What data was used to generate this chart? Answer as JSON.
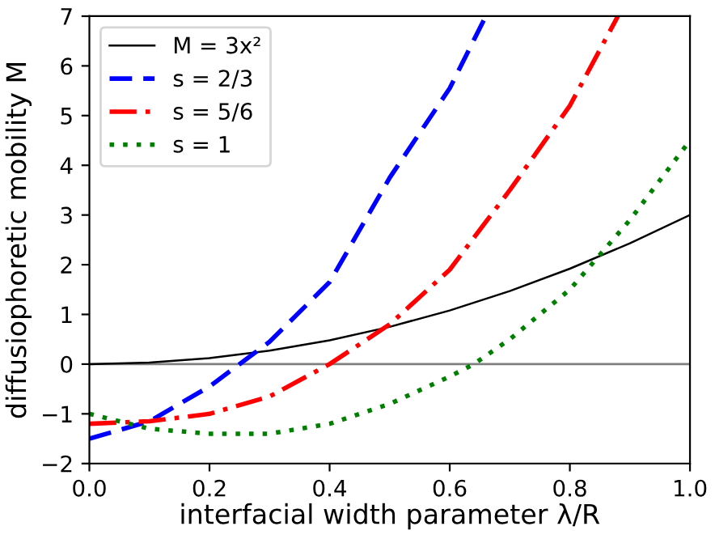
{
  "chart_data": {
    "type": "line",
    "xlabel": "interfacial width parameter λ/R",
    "ylabel": "diffusiophoretic mobility M",
    "xlim": [
      0,
      1
    ],
    "ylim": [
      -2,
      7
    ],
    "xticks": [
      {
        "value": 0,
        "label": "0.0"
      },
      0.2,
      0.4,
      0.6,
      0.8,
      {
        "value": 1,
        "label": "1.0"
      }
    ],
    "yticks": [
      -2,
      -1,
      0,
      1,
      2,
      3,
      4,
      5,
      6,
      7
    ],
    "grid": false,
    "legend": "top left",
    "marker": "none",
    "ref_lines": [
      {
        "axis": "y",
        "value": 0,
        "color": "#808080"
      }
    ],
    "series": [
      {
        "name": "M = 3x²",
        "color": "#000000",
        "line_style": "solid",
        "x": [
          0,
          0.1,
          0.2,
          0.3,
          0.4,
          0.5,
          0.6,
          0.7,
          0.8,
          0.9,
          1.0
        ],
        "values": [
          0,
          0.03,
          0.12,
          0.27,
          0.48,
          0.75,
          1.08,
          1.47,
          1.92,
          2.43,
          3.0
        ]
      },
      {
        "name": "s = 2/3",
        "color": "#0000ff",
        "line_style": "dashed",
        "x": [
          0,
          0.1,
          0.2,
          0.25,
          0.3,
          0.4,
          0.5,
          0.6,
          0.66
        ],
        "values": [
          -1.5,
          -1.15,
          -0.45,
          0,
          0.45,
          1.65,
          3.75,
          5.55,
          7.0
        ]
      },
      {
        "name": "s = 5/6",
        "color": "#ff0000",
        "line_style": "dashdot",
        "x": [
          0,
          0.1,
          0.2,
          0.3,
          0.4,
          0.5,
          0.6,
          0.7,
          0.8,
          0.88
        ],
        "values": [
          -1.2,
          -1.15,
          -1.0,
          -0.65,
          0,
          0.8,
          1.9,
          3.5,
          5.2,
          7.0
        ]
      },
      {
        "name": "s = 1",
        "color": "#008000",
        "line_style": "dotted",
        "x": [
          0,
          0.1,
          0.2,
          0.3,
          0.4,
          0.5,
          0.6,
          0.64,
          0.7,
          0.8,
          0.85,
          0.9,
          1.0
        ],
        "values": [
          -1.0,
          -1.3,
          -1.4,
          -1.4,
          -1.2,
          -0.8,
          -0.25,
          0,
          0.5,
          1.5,
          2.2,
          2.9,
          4.5
        ]
      }
    ]
  }
}
